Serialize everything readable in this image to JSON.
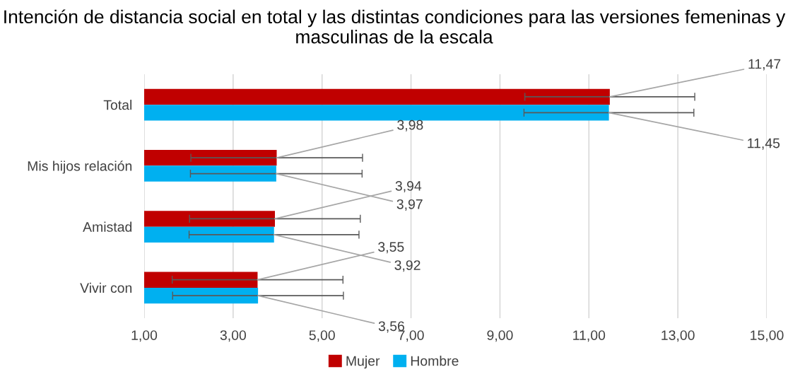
{
  "chart_data": {
    "type": "bar",
    "orientation": "horizontal",
    "title": "Intención de distancia social en total y las distintas condiciones para las versiones femeninas y masculinas de la escala",
    "categories": [
      "Total",
      "Mis hijos relación",
      "Amistad",
      "Vivir con"
    ],
    "series": [
      {
        "name": "Mujer",
        "color": "#c00000",
        "values": [
          11.47,
          3.98,
          3.94,
          3.55
        ],
        "errors": [
          1.91,
          1.93,
          1.92,
          1.92
        ],
        "value_labels": [
          "11,47",
          "3,98",
          "3,94",
          "3,55"
        ]
      },
      {
        "name": "Hombre",
        "color": "#00b0f0",
        "values": [
          11.45,
          3.97,
          3.92,
          3.56
        ],
        "errors": [
          1.91,
          1.93,
          1.91,
          1.92
        ],
        "value_labels": [
          "11,45",
          "3,97",
          "3,92",
          "3,56"
        ]
      }
    ],
    "xlim": [
      1,
      15
    ],
    "xticks": [
      {
        "value": 1,
        "label": "1,00"
      },
      {
        "value": 3,
        "label": "3,00"
      },
      {
        "value": 5,
        "label": "5,00"
      },
      {
        "value": 7,
        "label": "7,00"
      },
      {
        "value": 9,
        "label": "9,00"
      },
      {
        "value": 11,
        "label": "11,00"
      },
      {
        "value": 13,
        "label": "13,00"
      },
      {
        "value": 15,
        "label": "15,00"
      }
    ],
    "grid": "x",
    "legend": "bottom"
  }
}
